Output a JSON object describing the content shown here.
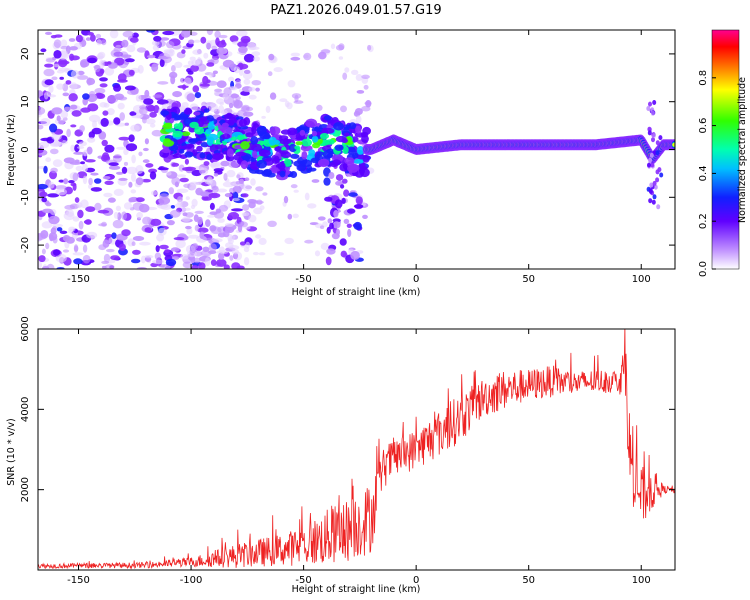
{
  "title": "PAZ1.2026.049.01.57.G19",
  "chart_data": [
    {
      "type": "heatmap",
      "title": "PAZ1.2026.049.01.57.G19",
      "xlabel": "Height of straight line (km)",
      "ylabel": "Frequency (Hz)",
      "xlim": [
        -168,
        115
      ],
      "ylim": [
        -25,
        25
      ],
      "xticks": [
        -150,
        -100,
        -50,
        0,
        50,
        100
      ],
      "yticks": [
        -20,
        -10,
        0,
        10,
        20
      ],
      "colorbar": {
        "label": "Normalized spectral amplitude",
        "range": [
          0,
          1
        ],
        "ticks": [
          "0.0",
          "0.2",
          "0.4",
          "0.6",
          "0.8"
        ],
        "colors": [
          "#ffffff",
          "#a000ff",
          "#2020ff",
          "#00ffff",
          "#00ff00",
          "#ffff00",
          "#ff8000",
          "#ff0000",
          "#ff00a0"
        ]
      },
      "trace": {
        "description_points_x": [
          -110,
          -100,
          -90,
          -80,
          -70,
          -60,
          -50,
          -40,
          -30,
          -20,
          -10,
          0,
          20,
          40,
          60,
          80,
          100,
          105,
          110,
          115
        ],
        "frequency_hz": [
          3,
          4,
          3,
          2,
          0,
          -1,
          0,
          2,
          0,
          0,
          2,
          0,
          1,
          1,
          1,
          1,
          2,
          -2,
          1,
          1
        ]
      }
    },
    {
      "type": "line",
      "xlabel": "Height of straight line (km)",
      "ylabel": "SNR (10 * v/v)",
      "xlim": [
        -168,
        115
      ],
      "ylim": [
        0,
        6000
      ],
      "xticks": [
        -150,
        -100,
        -50,
        0,
        50,
        100
      ],
      "yticks": [
        2000,
        4000,
        6000
      ],
      "color": "#ee2222",
      "envelope": {
        "x": [
          -168,
          -120,
          -100,
          -80,
          -60,
          -50,
          -40,
          -30,
          -20,
          -15,
          -10,
          0,
          10,
          20,
          30,
          40,
          50,
          60,
          70,
          80,
          90,
          93,
          95,
          100,
          105,
          110,
          115
        ],
        "mean": [
          100,
          120,
          200,
          350,
          500,
          600,
          800,
          1000,
          1300,
          2500,
          2800,
          3000,
          3400,
          3800,
          4300,
          4500,
          4600,
          4700,
          4650,
          4700,
          4700,
          5000,
          2800,
          1800,
          2000,
          2000,
          2000
        ],
        "amplitude": [
          60,
          70,
          120,
          300,
          400,
          500,
          700,
          800,
          900,
          500,
          500,
          500,
          600,
          600,
          500,
          500,
          400,
          400,
          300,
          300,
          300,
          800,
          1000,
          800,
          500,
          100,
          100
        ]
      }
    }
  ]
}
